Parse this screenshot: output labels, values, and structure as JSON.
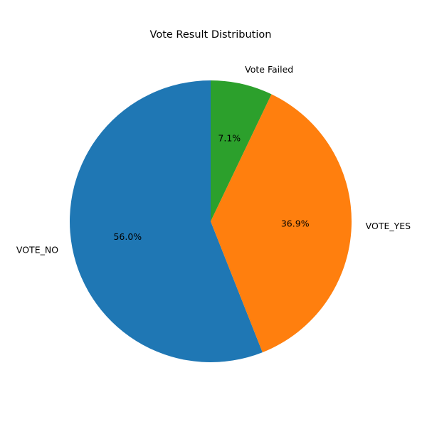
{
  "chart_data": {
    "type": "pie",
    "title": "Vote Result Distribution",
    "start_angle_deg": 90,
    "direction": "counterclockwise",
    "slices": [
      {
        "label": "VOTE_NO",
        "value": 56.0,
        "percent_label": "56.0%",
        "color": "#1f77b4"
      },
      {
        "label": "VOTE_YES",
        "value": 36.9,
        "percent_label": "36.9%",
        "color": "#ff7f0e"
      },
      {
        "label": "Vote Failed",
        "value": 7.1,
        "percent_label": "7.1%",
        "color": "#2ca02c"
      }
    ]
  }
}
